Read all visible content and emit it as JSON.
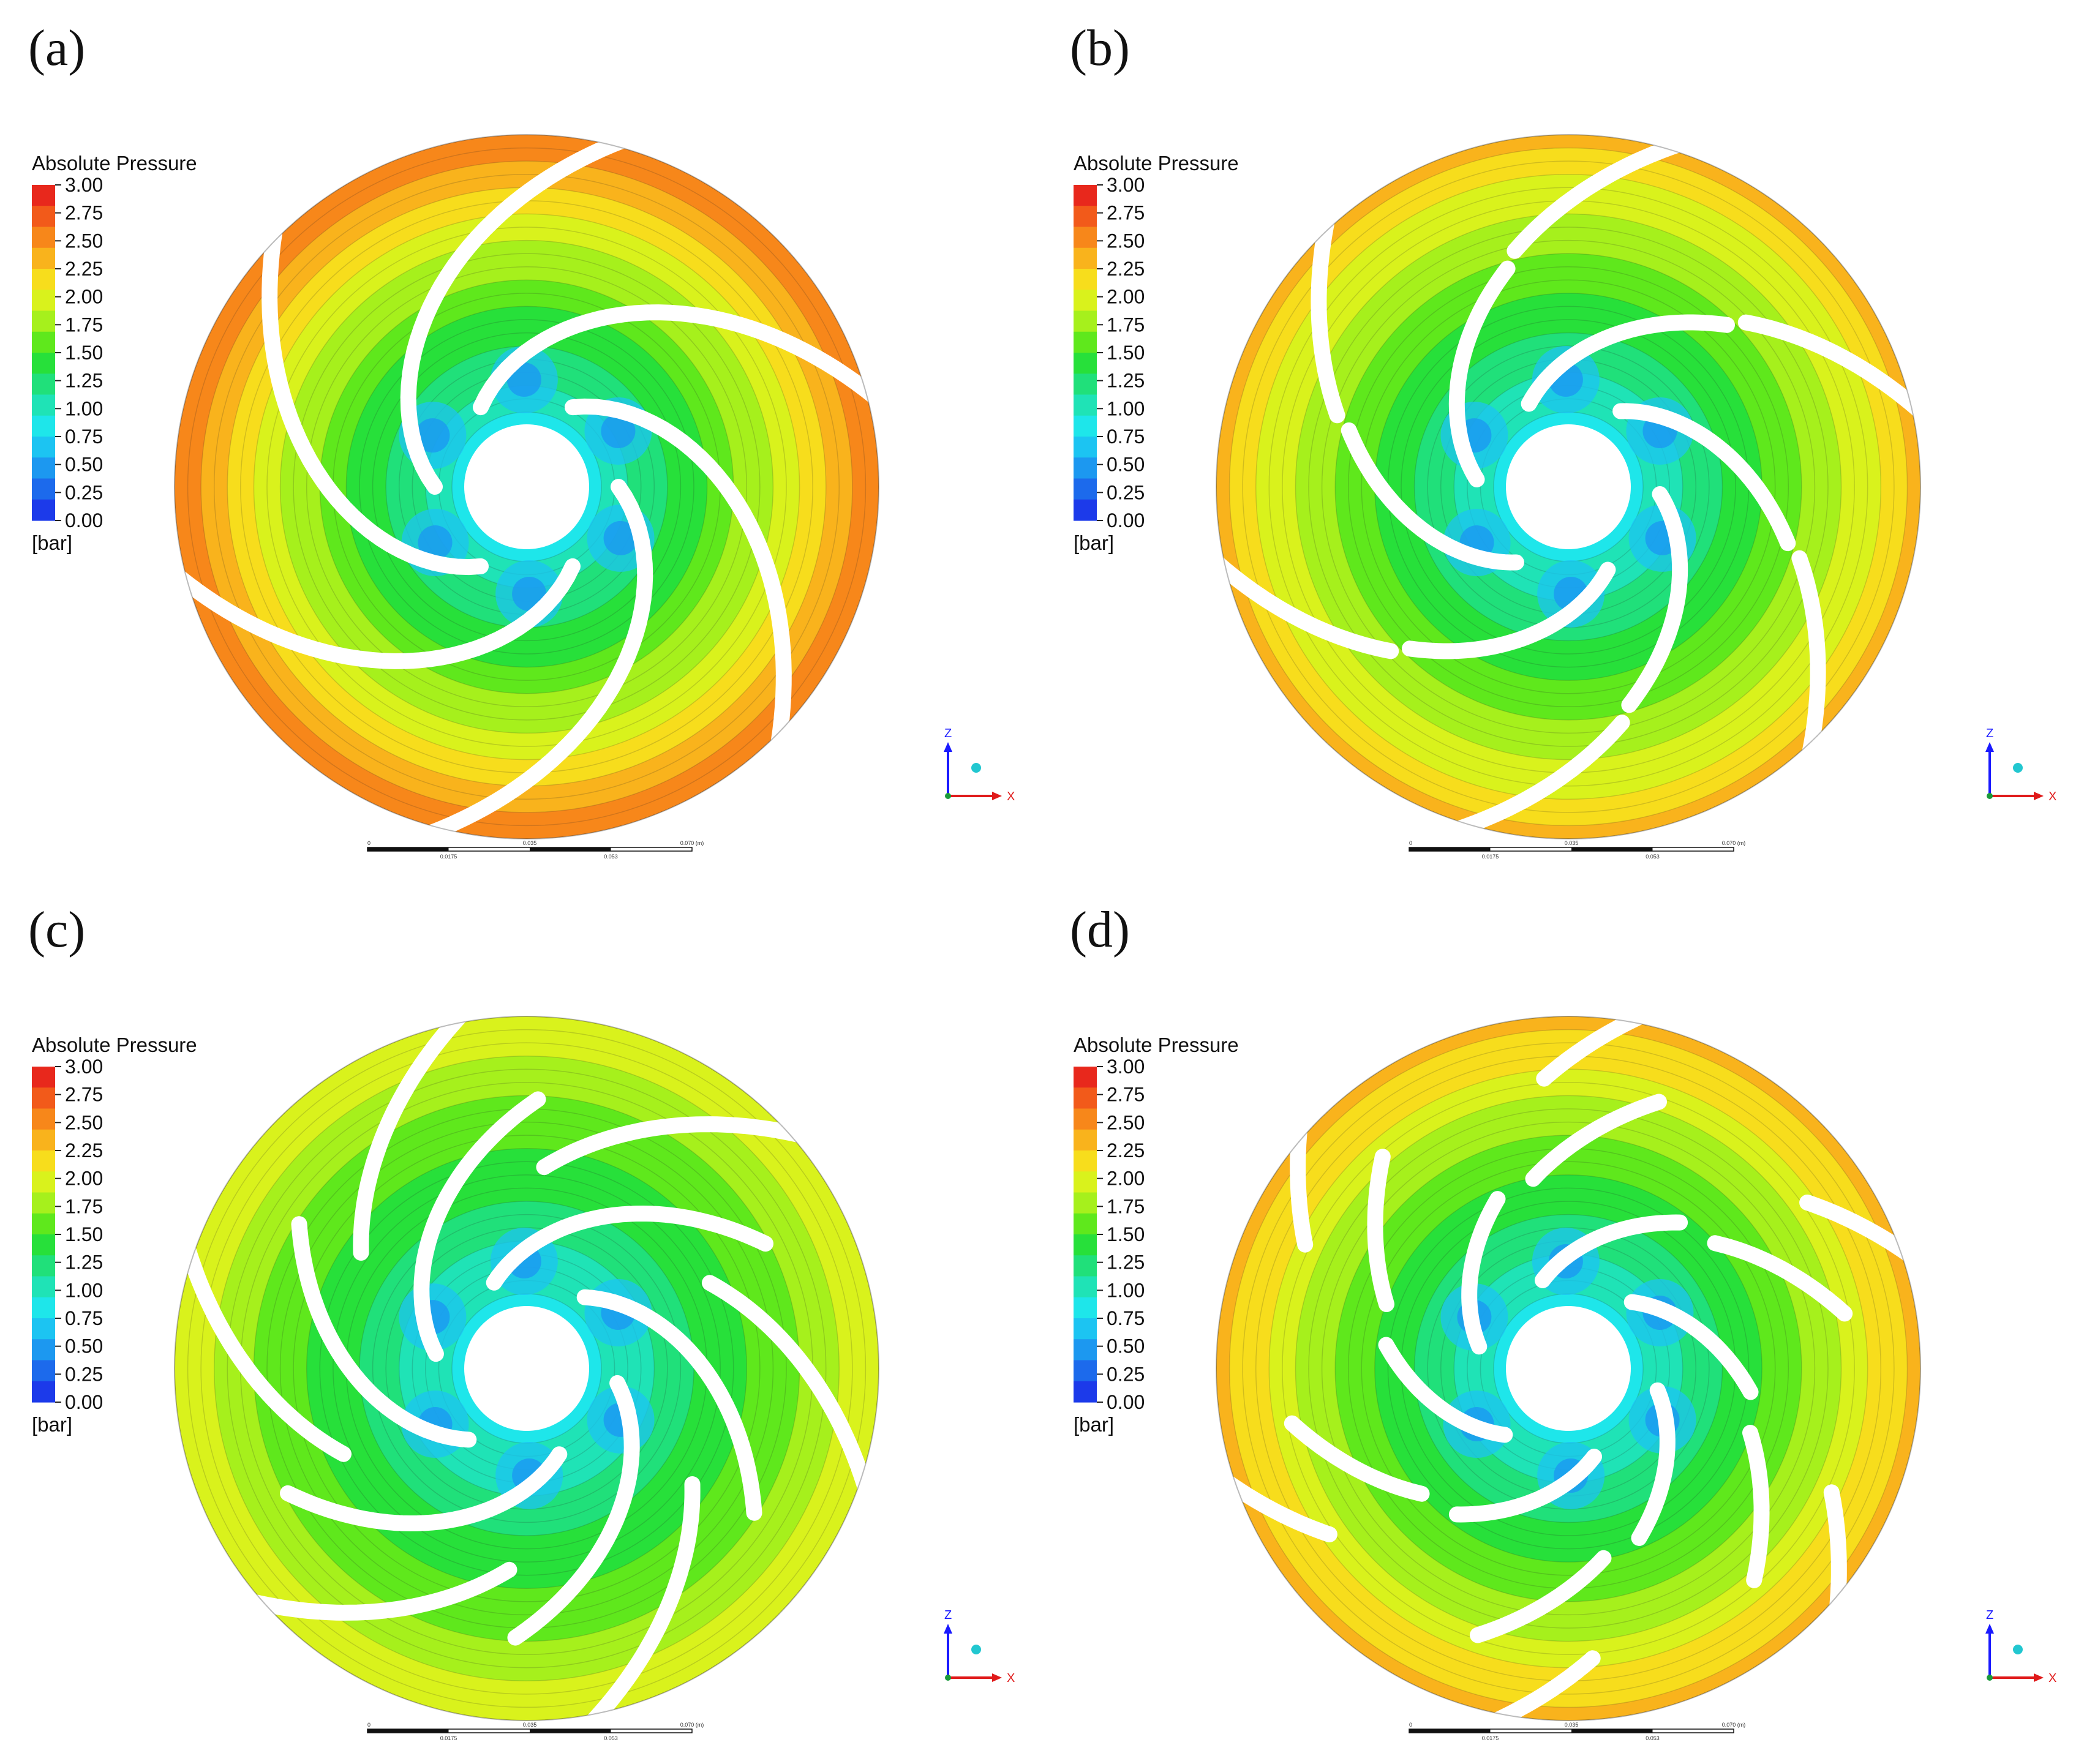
{
  "legend": {
    "title": "Absolute Pressure",
    "unit": "[bar]",
    "ticks": [
      "3.00",
      "2.75",
      "2.50",
      "2.25",
      "2.00",
      "1.75",
      "1.50",
      "1.25",
      "1.00",
      "0.75",
      "0.50",
      "0.25",
      "0.00"
    ],
    "colors": [
      "#e8281c",
      "#f25a1a",
      "#f7871a",
      "#f9b31c",
      "#f7dd1c",
      "#d9f21c",
      "#a6f01c",
      "#5fe81c",
      "#27e03a",
      "#20e07a",
      "#1fe3b6",
      "#1ee6ea",
      "#1cc4f2",
      "#1c98f0",
      "#1c6aec",
      "#1c3aea"
    ]
  },
  "axis": {
    "z": "Z",
    "x": "X"
  },
  "scale_bar": {
    "top": [
      "0",
      "0.035",
      "0.070 (m)"
    ],
    "bottom": [
      "0.0175",
      "0.053"
    ]
  },
  "panels": [
    {
      "label": "(a)",
      "outer_level": 0.88,
      "blade_type": "simple"
    },
    {
      "label": "(b)",
      "outer_level": 0.78,
      "blade_type": "split"
    },
    {
      "label": "(c)",
      "outer_level": 0.7,
      "blade_type": "double"
    },
    {
      "label": "(d)",
      "outer_level": 0.8,
      "blade_type": "tandem"
    }
  ]
}
